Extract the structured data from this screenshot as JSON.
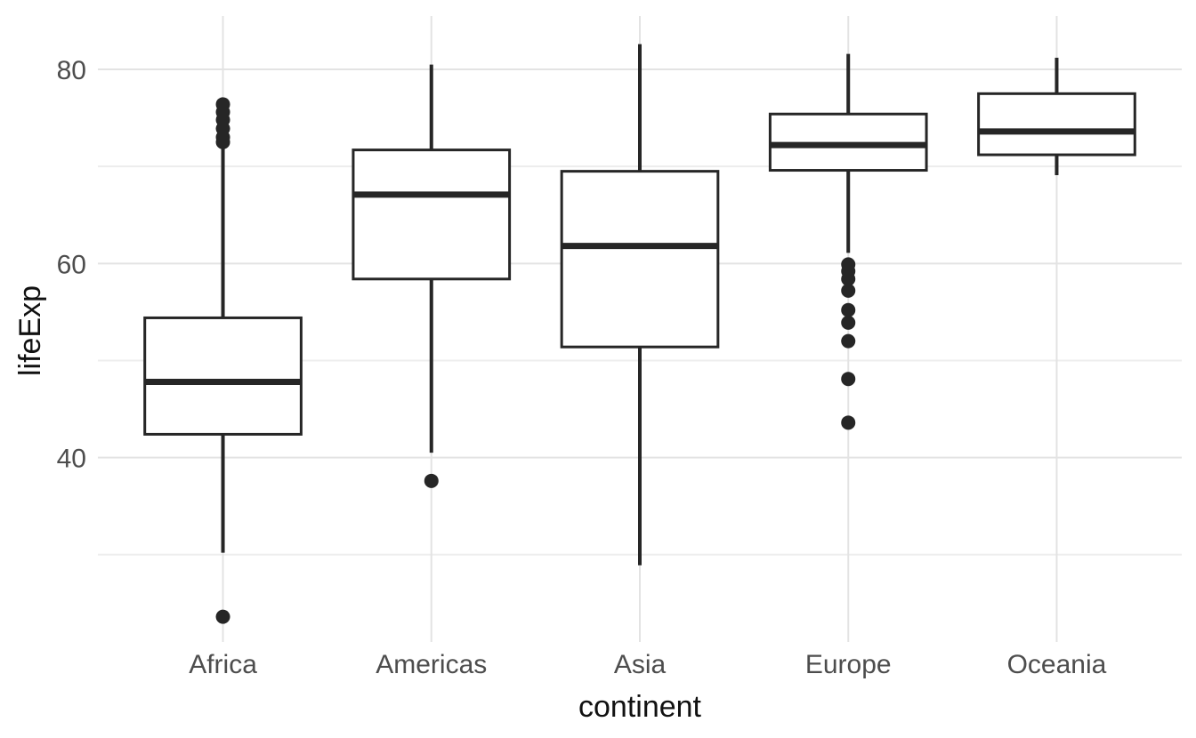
{
  "figure": {
    "kind": "boxplot-figure",
    "background_color": "#ffffff",
    "line_color": "#262626",
    "box_fill_color": "#ffffff",
    "grid_major_color": "#e3e3e3",
    "grid_minor_color": "#ededed",
    "tick_label_color": "#4d4d4d",
    "axis_title_color": "#111111"
  },
  "chart_data": {
    "type": "boxplot",
    "title": "",
    "xlabel": "continent",
    "ylabel": "lifeExp",
    "categories": [
      "Africa",
      "Americas",
      "Asia",
      "Europe",
      "Oceania"
    ],
    "series": [
      {
        "name": "Africa",
        "whisker_low": 30.2,
        "q1": 42.4,
        "median": 47.8,
        "q3": 54.4,
        "whisker_high": 72.0,
        "outliers": [
          76.4,
          75.6,
          74.8,
          73.9,
          73.0,
          72.5,
          23.6
        ]
      },
      {
        "name": "Americas",
        "whisker_low": 40.5,
        "q1": 58.4,
        "median": 67.1,
        "q3": 71.7,
        "whisker_high": 80.5,
        "outliers": [
          37.6
        ]
      },
      {
        "name": "Asia",
        "whisker_low": 28.9,
        "q1": 51.4,
        "median": 61.8,
        "q3": 69.5,
        "whisker_high": 82.6,
        "outliers": []
      },
      {
        "name": "Europe",
        "whisker_low": 61.1,
        "q1": 69.6,
        "median": 72.2,
        "q3": 75.4,
        "whisker_high": 81.6,
        "outliers": [
          59.9,
          59.2,
          58.4,
          57.2,
          55.2,
          53.9,
          52.0,
          48.1,
          43.6
        ]
      },
      {
        "name": "Oceania",
        "whisker_low": 69.1,
        "q1": 71.2,
        "median": 73.6,
        "q3": 77.5,
        "whisker_high": 81.2,
        "outliers": []
      }
    ],
    "y_ticks_major": [
      40,
      60,
      80
    ],
    "y_ticks_minor": [
      30,
      50,
      70
    ],
    "ylim": [
      21.0,
      85.5
    ],
    "grid": true,
    "legend": "none",
    "box_width_ratio": 0.75
  }
}
